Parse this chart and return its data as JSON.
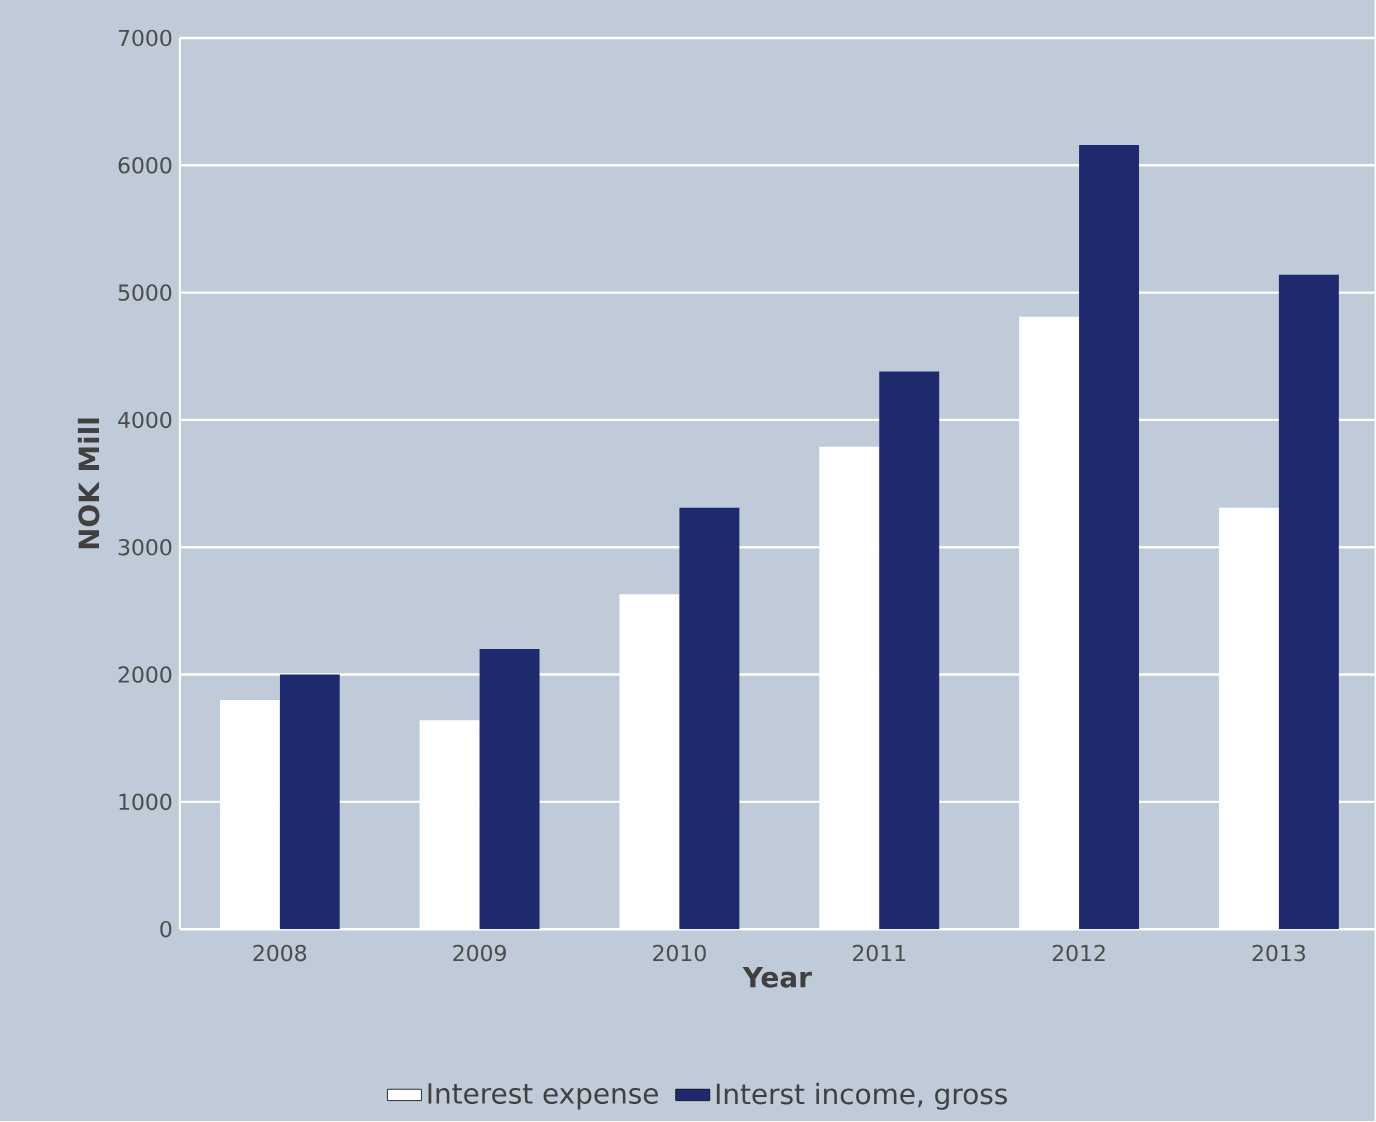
{
  "chart_data": {
    "type": "bar",
    "xlabel": "Year",
    "ylabel": "NOK Mill",
    "categories": [
      "2008",
      "2009",
      "2010",
      "2011",
      "2012",
      "2013"
    ],
    "series": [
      {
        "name": "Interest expense",
        "color": "#ffffff",
        "values": [
          1800,
          1640,
          2630,
          3790,
          4810,
          3310
        ]
      },
      {
        "name": "Interst income, gross",
        "color": "#1f2a6e",
        "values": [
          2000,
          2200,
          3310,
          4380,
          6160,
          5140
        ]
      }
    ],
    "ylim": [
      0,
      7000
    ],
    "yticks": [
      0,
      1000,
      2000,
      3000,
      4000,
      5000,
      6000,
      7000
    ],
    "grid": "y",
    "legend": "bottom"
  }
}
